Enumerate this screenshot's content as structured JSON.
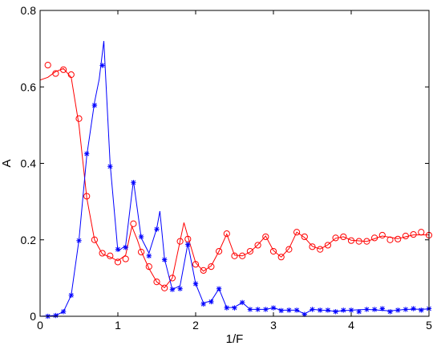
{
  "chart_data": {
    "type": "line",
    "xlabel": "1/F",
    "ylabel": "A",
    "xlim": [
      0,
      5
    ],
    "ylim": [
      0,
      0.8
    ],
    "xticks": [
      "0",
      "1",
      "2",
      "3",
      "4",
      "5"
    ],
    "yticks": [
      "0",
      "0.2",
      "0.4",
      "0.6",
      "0.8"
    ],
    "grid": false,
    "legend": "none",
    "series": [
      {
        "marker": "circle",
        "color": "#ff0000",
        "points": [
          [
            0.1,
            0.657
          ],
          [
            0.2,
            0.635
          ],
          [
            0.3,
            0.645
          ],
          [
            0.4,
            0.632
          ],
          [
            0.5,
            0.517
          ],
          [
            0.6,
            0.314
          ],
          [
            0.7,
            0.2
          ],
          [
            0.8,
            0.165
          ],
          [
            0.9,
            0.158
          ],
          [
            1.0,
            0.142
          ],
          [
            1.1,
            0.15
          ],
          [
            1.2,
            0.242
          ],
          [
            1.3,
            0.168
          ],
          [
            1.4,
            0.13
          ],
          [
            1.5,
            0.09
          ],
          [
            1.6,
            0.074
          ],
          [
            1.7,
            0.1
          ],
          [
            1.8,
            0.196
          ],
          [
            1.9,
            0.202
          ],
          [
            2.0,
            0.136
          ],
          [
            2.1,
            0.12
          ],
          [
            2.2,
            0.13
          ],
          [
            2.3,
            0.17
          ],
          [
            2.4,
            0.216
          ],
          [
            2.5,
            0.158
          ],
          [
            2.6,
            0.158
          ],
          [
            2.7,
            0.17
          ],
          [
            2.8,
            0.186
          ],
          [
            2.9,
            0.208
          ],
          [
            3.0,
            0.17
          ],
          [
            3.1,
            0.155
          ],
          [
            3.2,
            0.175
          ],
          [
            3.3,
            0.22
          ],
          [
            3.4,
            0.208
          ],
          [
            3.5,
            0.182
          ],
          [
            3.6,
            0.175
          ],
          [
            3.7,
            0.186
          ],
          [
            3.8,
            0.205
          ],
          [
            3.9,
            0.208
          ],
          [
            4.0,
            0.198
          ],
          [
            4.1,
            0.196
          ],
          [
            4.2,
            0.196
          ],
          [
            4.3,
            0.205
          ],
          [
            4.4,
            0.212
          ],
          [
            4.5,
            0.2
          ],
          [
            4.6,
            0.202
          ],
          [
            4.7,
            0.21
          ],
          [
            4.8,
            0.214
          ],
          [
            4.9,
            0.22
          ],
          [
            5.0,
            0.212
          ]
        ],
        "curve": [
          [
            0.0,
            0.618
          ],
          [
            0.1,
            0.625
          ],
          [
            0.2,
            0.64
          ],
          [
            0.3,
            0.648
          ],
          [
            0.4,
            0.625
          ],
          [
            0.5,
            0.5
          ],
          [
            0.6,
            0.31
          ],
          [
            0.7,
            0.2
          ],
          [
            0.8,
            0.163
          ],
          [
            0.9,
            0.155
          ],
          [
            1.0,
            0.145
          ],
          [
            1.1,
            0.16
          ],
          [
            1.18,
            0.235
          ],
          [
            1.25,
            0.2
          ],
          [
            1.3,
            0.17
          ],
          [
            1.4,
            0.125
          ],
          [
            1.5,
            0.09
          ],
          [
            1.6,
            0.075
          ],
          [
            1.7,
            0.1
          ],
          [
            1.85,
            0.245
          ],
          [
            1.92,
            0.195
          ],
          [
            2.0,
            0.14
          ],
          [
            2.1,
            0.118
          ],
          [
            2.2,
            0.132
          ],
          [
            2.3,
            0.17
          ],
          [
            2.4,
            0.215
          ],
          [
            2.5,
            0.16
          ],
          [
            2.6,
            0.158
          ],
          [
            2.7,
            0.168
          ],
          [
            2.8,
            0.187
          ],
          [
            2.9,
            0.21
          ],
          [
            3.0,
            0.172
          ],
          [
            3.1,
            0.155
          ],
          [
            3.2,
            0.177
          ],
          [
            3.3,
            0.22
          ],
          [
            3.4,
            0.206
          ],
          [
            3.5,
            0.183
          ],
          [
            3.6,
            0.176
          ],
          [
            3.7,
            0.187
          ],
          [
            3.8,
            0.204
          ],
          [
            3.9,
            0.208
          ],
          [
            4.0,
            0.199
          ],
          [
            4.2,
            0.196
          ],
          [
            4.4,
            0.21
          ],
          [
            4.6,
            0.203
          ],
          [
            4.8,
            0.213
          ],
          [
            5.0,
            0.213
          ]
        ]
      },
      {
        "marker": "asterisk",
        "color": "#0000ff",
        "points": [
          [
            0.1,
            0.0
          ],
          [
            0.2,
            0.002
          ],
          [
            0.3,
            0.012
          ],
          [
            0.4,
            0.055
          ],
          [
            0.5,
            0.198
          ],
          [
            0.6,
            0.425
          ],
          [
            0.7,
            0.552
          ],
          [
            0.8,
            0.656
          ],
          [
            0.9,
            0.392
          ],
          [
            1.0,
            0.175
          ],
          [
            1.1,
            0.18
          ],
          [
            1.2,
            0.35
          ],
          [
            1.3,
            0.208
          ],
          [
            1.4,
            0.158
          ],
          [
            1.5,
            0.228
          ],
          [
            1.6,
            0.148
          ],
          [
            1.7,
            0.07
          ],
          [
            1.8,
            0.072
          ],
          [
            1.9,
            0.188
          ],
          [
            2.0,
            0.085
          ],
          [
            2.1,
            0.032
          ],
          [
            2.2,
            0.038
          ],
          [
            2.3,
            0.072
          ],
          [
            2.4,
            0.022
          ],
          [
            2.5,
            0.022
          ],
          [
            2.6,
            0.036
          ],
          [
            2.7,
            0.018
          ],
          [
            2.8,
            0.018
          ],
          [
            2.9,
            0.018
          ],
          [
            3.0,
            0.022
          ],
          [
            3.1,
            0.015
          ],
          [
            3.2,
            0.016
          ],
          [
            3.3,
            0.016
          ],
          [
            3.4,
            0.005
          ],
          [
            3.5,
            0.018
          ],
          [
            3.6,
            0.016
          ],
          [
            3.7,
            0.016
          ],
          [
            3.8,
            0.012
          ],
          [
            3.9,
            0.016
          ],
          [
            4.0,
            0.016
          ],
          [
            4.1,
            0.012
          ],
          [
            4.2,
            0.018
          ],
          [
            4.3,
            0.018
          ],
          [
            4.4,
            0.02
          ],
          [
            4.5,
            0.012
          ],
          [
            4.6,
            0.016
          ],
          [
            4.7,
            0.018
          ],
          [
            4.8,
            0.02
          ],
          [
            4.9,
            0.016
          ],
          [
            5.0,
            0.02
          ]
        ],
        "curve": [
          [
            0.0,
            0.0
          ],
          [
            0.2,
            0.002
          ],
          [
            0.3,
            0.012
          ],
          [
            0.4,
            0.055
          ],
          [
            0.5,
            0.2
          ],
          [
            0.6,
            0.42
          ],
          [
            0.7,
            0.56
          ],
          [
            0.76,
            0.62
          ],
          [
            0.82,
            0.72
          ],
          [
            0.9,
            0.4
          ],
          [
            1.0,
            0.17
          ],
          [
            1.1,
            0.185
          ],
          [
            1.2,
            0.355
          ],
          [
            1.3,
            0.205
          ],
          [
            1.4,
            0.165
          ],
          [
            1.5,
            0.23
          ],
          [
            1.54,
            0.275
          ],
          [
            1.6,
            0.15
          ],
          [
            1.7,
            0.07
          ],
          [
            1.8,
            0.08
          ],
          [
            1.9,
            0.19
          ],
          [
            2.0,
            0.085
          ],
          [
            2.1,
            0.035
          ],
          [
            2.2,
            0.04
          ],
          [
            2.3,
            0.072
          ],
          [
            2.4,
            0.022
          ],
          [
            2.5,
            0.024
          ],
          [
            2.6,
            0.036
          ],
          [
            2.7,
            0.018
          ],
          [
            2.9,
            0.018
          ],
          [
            3.0,
            0.022
          ],
          [
            3.1,
            0.016
          ],
          [
            3.3,
            0.016
          ],
          [
            3.4,
            0.006
          ],
          [
            3.5,
            0.018
          ],
          [
            3.8,
            0.013
          ],
          [
            4.0,
            0.016
          ],
          [
            4.2,
            0.018
          ],
          [
            4.5,
            0.014
          ],
          [
            4.7,
            0.018
          ],
          [
            5.0,
            0.019
          ]
        ]
      }
    ]
  }
}
